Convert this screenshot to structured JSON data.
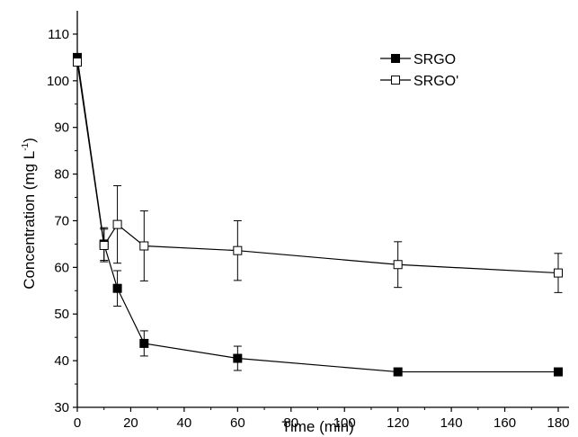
{
  "chart_data": {
    "type": "line",
    "xlabel": "Time (min)",
    "ylabel": "Concentration (mg L",
    "ylabel_superscript": "-1",
    "ylabel_close": ")",
    "xlim": [
      0,
      185
    ],
    "ylim": [
      30,
      115
    ],
    "x_ticks": [
      0,
      20,
      40,
      60,
      80,
      100,
      120,
      140,
      160,
      180
    ],
    "y_ticks": [
      30,
      40,
      50,
      60,
      70,
      80,
      90,
      100,
      110
    ],
    "grid": false,
    "legend_position": "top-right",
    "series": [
      {
        "name": "SRGO",
        "marker": "filled-square",
        "color": "#000000",
        "x": [
          0,
          10,
          15,
          25,
          60,
          120,
          180
        ],
        "y": [
          105,
          65,
          55.5,
          43.7,
          40.5,
          37.6,
          37.6
        ],
        "err": [
          0,
          3.5,
          3.8,
          2.7,
          2.6,
          0,
          0
        ]
      },
      {
        "name": "SRGO'",
        "marker": "open-square",
        "color": "#000000",
        "x": [
          0,
          10,
          15,
          25,
          60,
          120,
          180
        ],
        "y": [
          104,
          64.7,
          69.2,
          64.6,
          63.6,
          60.6,
          58.8
        ],
        "err": [
          0,
          3.5,
          8.3,
          7.5,
          6.4,
          4.9,
          4.2
        ]
      }
    ]
  }
}
